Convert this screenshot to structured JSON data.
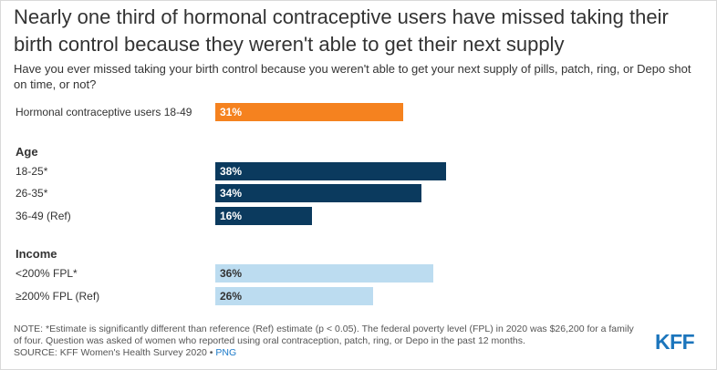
{
  "title": "Nearly one third of hormonal contraceptive users have missed taking their birth control because they weren't able to get their next supply",
  "subtitle": "Have you ever missed taking your birth control because you weren't able to get your next supply of pills, patch, ring, or Depo shot on time, or not?",
  "sections": {
    "age": "Age",
    "income": "Income"
  },
  "chart_data": {
    "type": "bar",
    "orientation": "horizontal",
    "unit": "%",
    "xlim": [
      0,
      100
    ],
    "rows": [
      {
        "label": "Hormonal contraceptive users 18-49",
        "value": 31,
        "display": "31%",
        "group": "overall",
        "color": "#f5821f",
        "text_color": "#ffffff"
      },
      {
        "label": "18-25*",
        "value": 38,
        "display": "38%",
        "group": "Age",
        "color": "#0b3a5e",
        "text_color": "#ffffff"
      },
      {
        "label": "26-35*",
        "value": 34,
        "display": "34%",
        "group": "Age",
        "color": "#0b3a5e",
        "text_color": "#ffffff"
      },
      {
        "label": "36-49 (Ref)",
        "value": 16,
        "display": "16%",
        "group": "Age",
        "color": "#0b3a5e",
        "text_color": "#ffffff"
      },
      {
        "label": "<200% FPL*",
        "value": 36,
        "display": "36%",
        "group": "Income",
        "color": "#bcdcf0",
        "text_color": "#333333"
      },
      {
        "label": "≥200% FPL (Ref)",
        "value": 26,
        "display": "26%",
        "group": "Income",
        "color": "#bcdcf0",
        "text_color": "#333333"
      }
    ]
  },
  "note": "NOTE: *Estimate is significantly different than reference (Ref) estimate (p < 0.05). The federal poverty level (FPL) in 2020 was $26,200 for a family of four. Question was asked of women who reported using oral contraception, patch, ring, or Depo in the past 12 months.",
  "source": "SOURCE: KFF Women's Health Survey 2020 • ",
  "png_link": "PNG",
  "logo": "KFF"
}
